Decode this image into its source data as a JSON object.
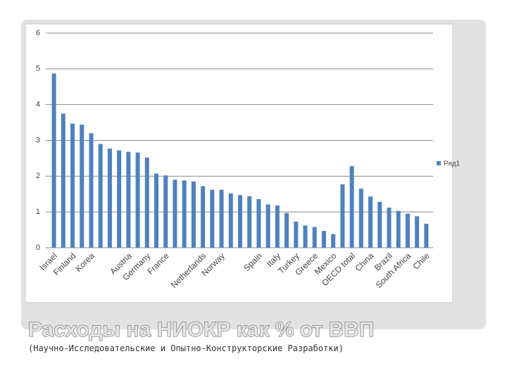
{
  "chart_data": {
    "type": "bar",
    "title": "Расходы на НИОКР как % от ВВП",
    "subtitle": "(Научно-Исследовательские и Опытно-Конструкторские Разработки)",
    "categories": [
      "Israel",
      null,
      "Finland",
      null,
      "Korea",
      null,
      null,
      null,
      "Austria",
      null,
      "Germany",
      null,
      "France",
      null,
      null,
      null,
      "Netherlands",
      null,
      "Norway",
      null,
      null,
      null,
      "Spain",
      null,
      "Italy",
      null,
      "Turkey",
      null,
      "Greece",
      null,
      "Mexico",
      null,
      "OECD total",
      null,
      "China",
      null,
      "Brazil",
      null,
      "South Africa",
      null,
      "Chile"
    ],
    "series": [
      {
        "name": "Ряд1",
        "color": "#4f81bd",
        "values": [
          4.87,
          3.75,
          3.47,
          3.44,
          3.2,
          2.9,
          2.77,
          2.72,
          2.68,
          2.66,
          2.52,
          2.07,
          2.02,
          1.9,
          1.88,
          1.85,
          1.72,
          1.62,
          1.62,
          1.52,
          1.47,
          1.44,
          1.36,
          1.21,
          1.18,
          0.97,
          0.73,
          0.62,
          0.58,
          0.47,
          0.38,
          1.77,
          2.28,
          1.65,
          1.43,
          1.28,
          1.12,
          1.03,
          0.95,
          0.88,
          0.67
        ]
      }
    ],
    "ylim": [
      0,
      6
    ],
    "yticks": [
      0,
      1,
      2,
      3,
      4,
      5,
      6
    ],
    "grid": true,
    "legend": "right"
  }
}
